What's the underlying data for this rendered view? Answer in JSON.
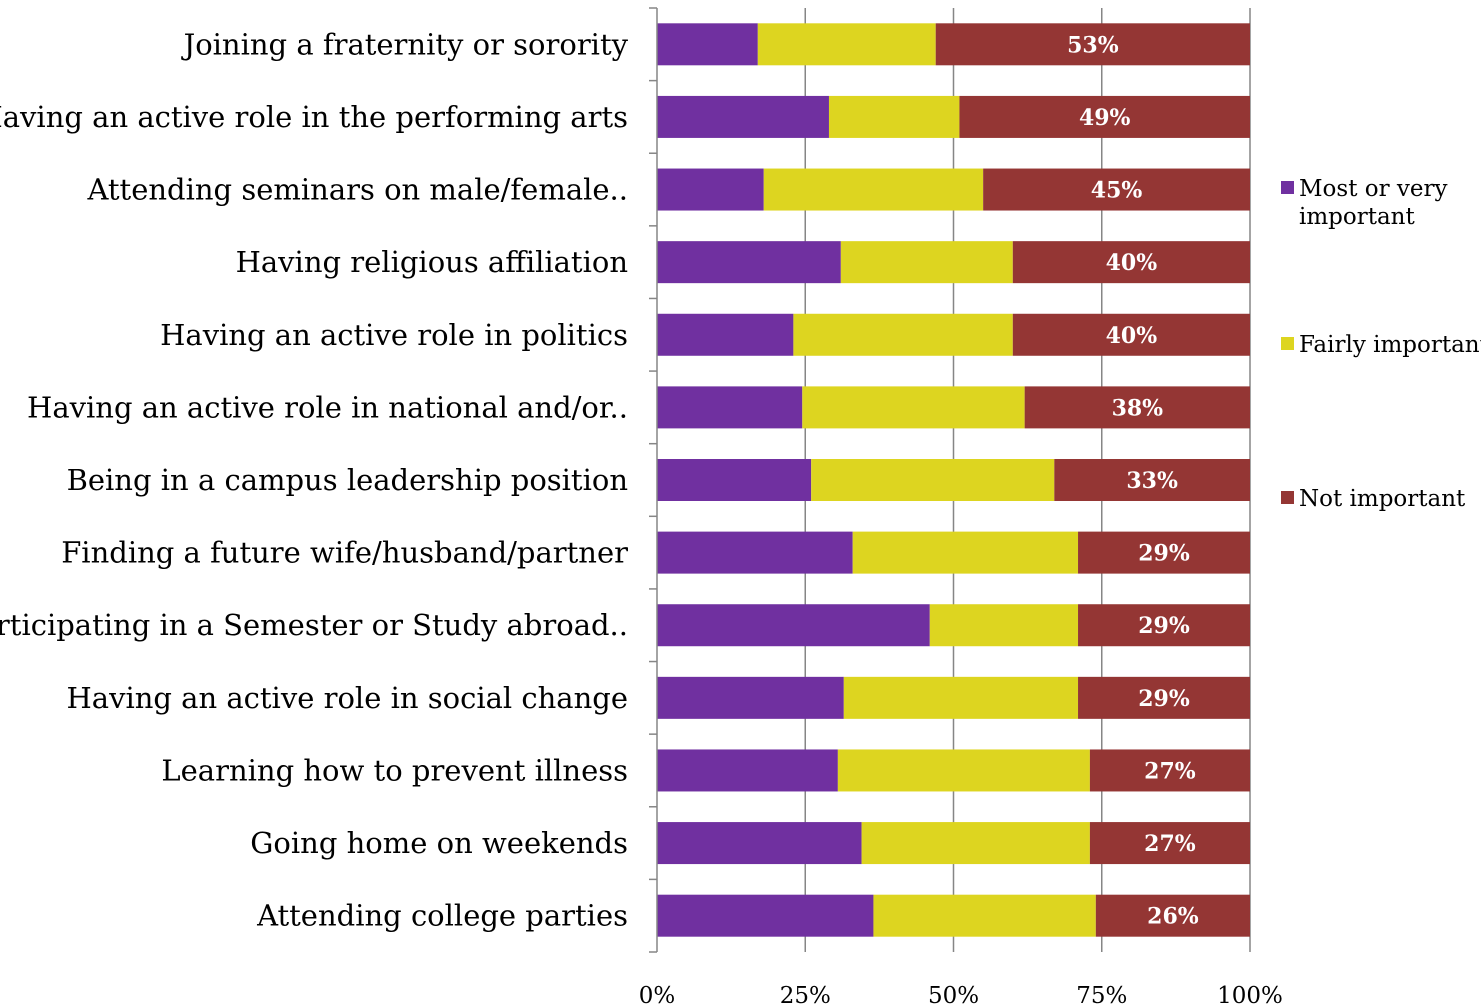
{
  "chart_data": {
    "type": "bar",
    "orientation": "horizontal",
    "stacked": "percent",
    "categories": [
      "Joining a fraternity or sorority",
      "Having an active role in the performing arts",
      "Attending seminars on male/female..",
      "Having religious affiliation",
      "Having an active role in politics",
      "Having an active role in national and/or..",
      "Being in a campus leadership position",
      "Finding a future wife/husband/partner",
      "Participating in a Semester or Study abroad..",
      "Having an active role in social change",
      "Learning how to prevent illness",
      "Going home on weekends",
      "Attending college parties"
    ],
    "series": [
      {
        "name": "Most or very important",
        "color": "#7030A0",
        "values": [
          17,
          29,
          18,
          31,
          23,
          24.5,
          26,
          33,
          46,
          31.5,
          30.5,
          34.5,
          36.5
        ]
      },
      {
        "name": "Fairly important",
        "color": "#DDD520",
        "values": [
          30,
          22,
          37,
          29,
          37,
          37.5,
          41,
          38,
          25,
          39.5,
          42.5,
          38.5,
          37.5
        ]
      },
      {
        "name": "Not important",
        "color": "#943634",
        "values": [
          53,
          49,
          45,
          40,
          40,
          38,
          33,
          29,
          29,
          29,
          27,
          27,
          26
        ],
        "data_labels": [
          "53%",
          "49%",
          "45%",
          "40%",
          "40%",
          "38%",
          "33%",
          "29%",
          "29%",
          "29%",
          "27%",
          "27%",
          "26%"
        ]
      }
    ],
    "xlim": [
      0,
      100
    ],
    "x_ticks": [
      "0%",
      "25%",
      "50%",
      "75%",
      "100%"
    ],
    "grid": "vertical",
    "legend_position": "right",
    "title": "",
    "xlabel": "",
    "ylabel": ""
  }
}
